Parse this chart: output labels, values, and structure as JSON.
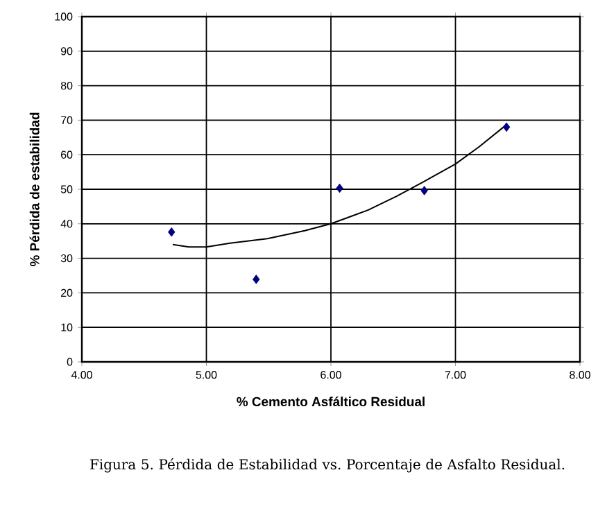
{
  "chart_data": {
    "type": "scatter",
    "title": "Figura 5. Pérdida de Estabilidad vs. Porcentaje de Asfalto Residual.",
    "xlabel": "% Cemento Asfáltico Residual",
    "ylabel": "% Pérdida de estabilidad",
    "xlim": [
      4,
      8
    ],
    "ylim": [
      0,
      100
    ],
    "xticks": [
      {
        "value": 4,
        "label": "4.00"
      },
      {
        "value": 5,
        "label": "5.00"
      },
      {
        "value": 6,
        "label": "6.00"
      },
      {
        "value": 7,
        "label": "7.00"
      },
      {
        "value": 8,
        "label": "8.00"
      }
    ],
    "yticks": [
      0,
      10,
      20,
      30,
      40,
      50,
      60,
      70,
      80,
      90,
      100
    ],
    "grid": true,
    "series": [
      {
        "marker": "diamond",
        "color": "#000080",
        "x": [
          4.72,
          5.4,
          6.07,
          6.75,
          7.41
        ],
        "values": [
          37.6,
          23.9,
          50.3,
          49.6,
          68
        ]
      },
      {
        "type": "line",
        "marker": "none",
        "line_style": "solid",
        "color": "#000000",
        "x": [
          4.73,
          4.86,
          5.0,
          5.19,
          5.49,
          5.79,
          6.0,
          6.3,
          6.53,
          6.75,
          7.0,
          7.19,
          7.41
        ],
        "values": [
          34,
          33.3,
          33.3,
          34.4,
          35.7,
          38,
          40,
          44,
          48,
          52.3,
          57.3,
          62.3,
          68.7
        ]
      }
    ]
  }
}
